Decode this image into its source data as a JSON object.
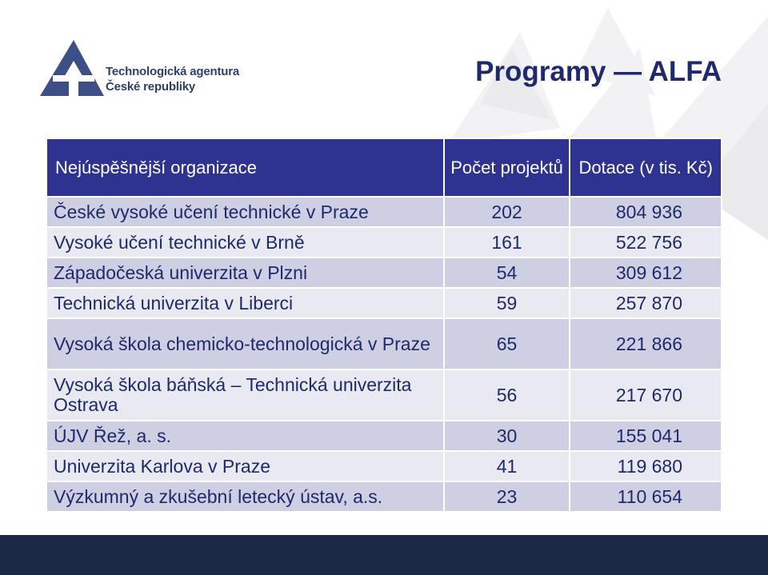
{
  "logo": {
    "line1": "Technologická agentura",
    "line2": "České republiky"
  },
  "title": "Programy — ALFA",
  "table": {
    "headers": {
      "organization": "Nejúspěšnější organizace",
      "count": "Počet projektů",
      "subsidy": "Dotace (v tis. Kč)"
    },
    "rows": [
      {
        "organization": "České vysoké učení technické v Praze",
        "count": "202",
        "subsidy": "804 936"
      },
      {
        "organization": "Vysoké učení technické v Brně",
        "count": "161",
        "subsidy": "522 756"
      },
      {
        "organization": "Západočeská univerzita v Plzni",
        "count": "54",
        "subsidy": "309 612"
      },
      {
        "organization": "Technická univerzita v Liberci",
        "count": "59",
        "subsidy": "257 870"
      },
      {
        "organization": "Vysoká škola chemicko-technologická v Praze",
        "count": "65",
        "subsidy": "221 866"
      },
      {
        "organization": "Vysoká škola báňská – Technická univerzita Ostrava",
        "count": "56",
        "subsidy": "217 670"
      },
      {
        "organization": "ÚJV Řež, a. s.",
        "count": "30",
        "subsidy": "155 041"
      },
      {
        "organization": "Univerzita Karlova v Praze",
        "count": "41",
        "subsidy": "119 680"
      },
      {
        "organization": "Výzkumný a zkušební letecký ústav, a.s.",
        "count": "23",
        "subsidy": "110 654"
      }
    ]
  },
  "colors": {
    "header_bg": "#2e3392",
    "row_dark": "#cfcfe3",
    "row_light": "#e9e9f1",
    "title": "#1f2a6e",
    "bottom_bar": "#1b2846"
  }
}
